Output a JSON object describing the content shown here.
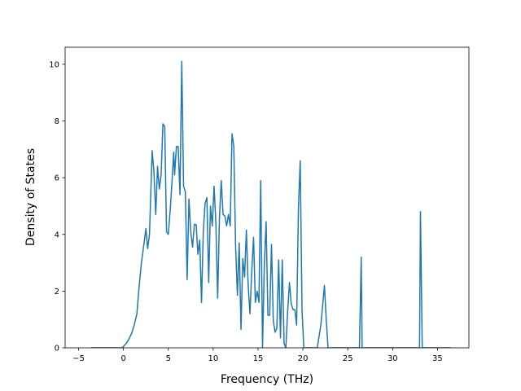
{
  "chart_data": {
    "type": "line",
    "title": "",
    "xlabel": "Frequency (THz)",
    "ylabel": "Density of States",
    "xlim": [
      -6.5,
      38.5
    ],
    "ylim": [
      0,
      10.6
    ],
    "xticks": [
      -5,
      0,
      5,
      10,
      15,
      20,
      25,
      30,
      35
    ],
    "yticks": [
      0,
      2,
      4,
      6,
      8,
      10
    ],
    "grid": false,
    "line_color": "#1f77b4",
    "series": [
      {
        "x": [
          -3.6,
          -0.2,
          0.0,
          0.3,
          0.6,
          0.9,
          1.2,
          1.5,
          1.7,
          2.0,
          2.3,
          2.5,
          2.7,
          2.9,
          3.2,
          3.4,
          3.6,
          3.8,
          4.0,
          4.2,
          4.4,
          4.6,
          4.8,
          5.0,
          5.2,
          5.4,
          5.6,
          5.7,
          5.9,
          6.1,
          6.3,
          6.5,
          6.7,
          6.9,
          7.1,
          7.3,
          7.5,
          7.7,
          7.9,
          8.1,
          8.3,
          8.5,
          8.7,
          8.9,
          9.1,
          9.3,
          9.5,
          9.7,
          9.9,
          10.1,
          10.3,
          10.5,
          10.7,
          10.9,
          11.1,
          11.3,
          11.5,
          11.7,
          11.9,
          12.1,
          12.3,
          12.5,
          12.7,
          12.9,
          13.1,
          13.3,
          13.5,
          13.7,
          13.9,
          14.1,
          14.3,
          14.5,
          14.7,
          14.9,
          15.1,
          15.3,
          15.5,
          15.7,
          15.9,
          16.1,
          16.3,
          16.5,
          16.7,
          16.9,
          17.1,
          17.3,
          17.5,
          17.7,
          17.9,
          18.1,
          18.3,
          18.5,
          18.7,
          18.9,
          19.1,
          19.3,
          19.5,
          19.7,
          19.9,
          20.1,
          20.3,
          20.5,
          21.6,
          22.0,
          22.4,
          22.6,
          22.8,
          23.0,
          26.3,
          26.5,
          26.6,
          26.8,
          27.0,
          32.8,
          33.0,
          33.1,
          33.3,
          33.5,
          36.5
        ],
        "y": [
          0.0,
          0.0,
          0.05,
          0.15,
          0.3,
          0.5,
          0.8,
          1.2,
          2.0,
          3.0,
          3.7,
          4.2,
          3.5,
          4.0,
          6.95,
          6.2,
          4.7,
          6.4,
          5.6,
          6.1,
          7.9,
          7.8,
          4.1,
          4.0,
          4.8,
          5.8,
          6.9,
          6.1,
          7.1,
          7.1,
          5.4,
          10.1,
          5.7,
          5.5,
          2.4,
          5.25,
          4.1,
          3.55,
          4.35,
          4.35,
          3.3,
          3.8,
          1.6,
          4.1,
          5.1,
          5.3,
          2.3,
          5.0,
          4.3,
          5.7,
          4.4,
          1.75,
          4.6,
          5.9,
          4.7,
          4.65,
          4.3,
          4.7,
          4.3,
          7.55,
          7.1,
          3.55,
          1.85,
          3.7,
          0.65,
          3.15,
          2.5,
          4.15,
          2.2,
          1.2,
          2.7,
          3.9,
          1.6,
          2.0,
          1.6,
          5.9,
          0.0,
          2.9,
          4.45,
          1.15,
          1.15,
          3.65,
          0.95,
          0.55,
          0.7,
          3.1,
          0.35,
          3.1,
          0.15,
          0.0,
          1.3,
          2.3,
          1.55,
          1.35,
          1.35,
          0.8,
          4.9,
          6.6,
          1.35,
          0.0,
          0.0,
          0.0,
          0.0,
          0.8,
          2.2,
          1.0,
          0.0,
          0.0,
          0.0,
          3.2,
          0.0,
          0.0,
          0.0,
          0.0,
          0.0,
          4.8,
          0.0,
          0.0,
          0.0
        ]
      }
    ]
  }
}
